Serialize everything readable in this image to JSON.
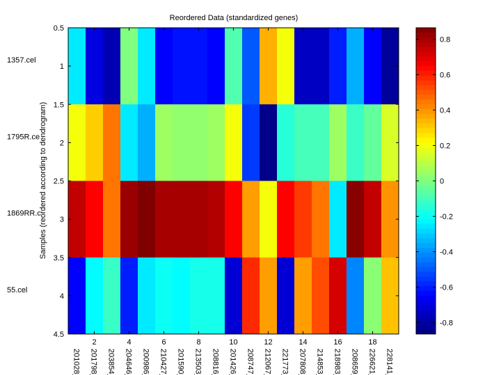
{
  "chart_data": {
    "type": "heatmap",
    "title": "Reordered Data (standardized genes)",
    "ylabel": "Samples (reordered according to dendrogram)",
    "xlabel": "",
    "ylim": [
      0.5,
      4.5
    ],
    "yticks": [
      "0.5",
      "1",
      "1.5",
      "2",
      "2.5",
      "3",
      "3.5",
      "4",
      "4.5"
    ],
    "xticks": [
      "2",
      "4",
      "6",
      "8",
      "10",
      "12",
      "14",
      "16",
      "18"
    ],
    "row_labels": [
      "1357.cel",
      "1795R.ce",
      "1869RR.c",
      "55.cel"
    ],
    "column_labels": [
      "201028_",
      "201798_",
      "203854_",
      "204646_",
      "200986_",
      "210427_",
      "201590_",
      "213503_",
      "208816_",
      "201426_",
      "208747_",
      "212067_",
      "221773_",
      "207808_",
      "214853_",
      "218983_",
      "208659_",
      "226621_",
      "228141_"
    ],
    "values": [
      [
        -0.25,
        -0.7,
        -0.78,
        0.0,
        -0.25,
        -0.65,
        -0.62,
        -0.62,
        -0.65,
        -0.08,
        -0.5,
        0.35,
        0.2,
        -0.75,
        -0.75,
        -0.6,
        -0.35,
        -0.65,
        -0.82
      ],
      [
        0.2,
        0.3,
        0.45,
        -0.25,
        -0.35,
        0.05,
        0.03,
        0.03,
        0.05,
        0.2,
        -0.55,
        -0.85,
        -0.15,
        -0.1,
        -0.1,
        0.05,
        -0.12,
        -0.05,
        0.15
      ],
      [
        0.75,
        0.65,
        0.45,
        0.82,
        0.87,
        0.8,
        0.8,
        0.8,
        0.78,
        0.65,
        0.38,
        0.2,
        0.65,
        0.55,
        0.45,
        -0.25,
        0.85,
        0.75,
        0.4
      ],
      [
        -0.65,
        -0.22,
        -0.12,
        -0.6,
        -0.25,
        -0.2,
        -0.22,
        -0.18,
        -0.18,
        -0.72,
        0.58,
        0.38,
        -0.72,
        0.38,
        0.52,
        0.72,
        -0.42,
        0.02,
        0.32
      ]
    ],
    "colorbar": {
      "colormap": "jet",
      "range": [
        -0.865,
        0.865
      ],
      "ticks": [
        "0.8",
        "0.6",
        "0.4",
        "0.2",
        "0",
        "-0.2",
        "-0.4",
        "-0.6",
        "-0.8"
      ],
      "tick_values": [
        0.8,
        0.6,
        0.4,
        0.2,
        0,
        -0.2,
        -0.4,
        -0.6,
        -0.8
      ]
    },
    "grid": false
  }
}
